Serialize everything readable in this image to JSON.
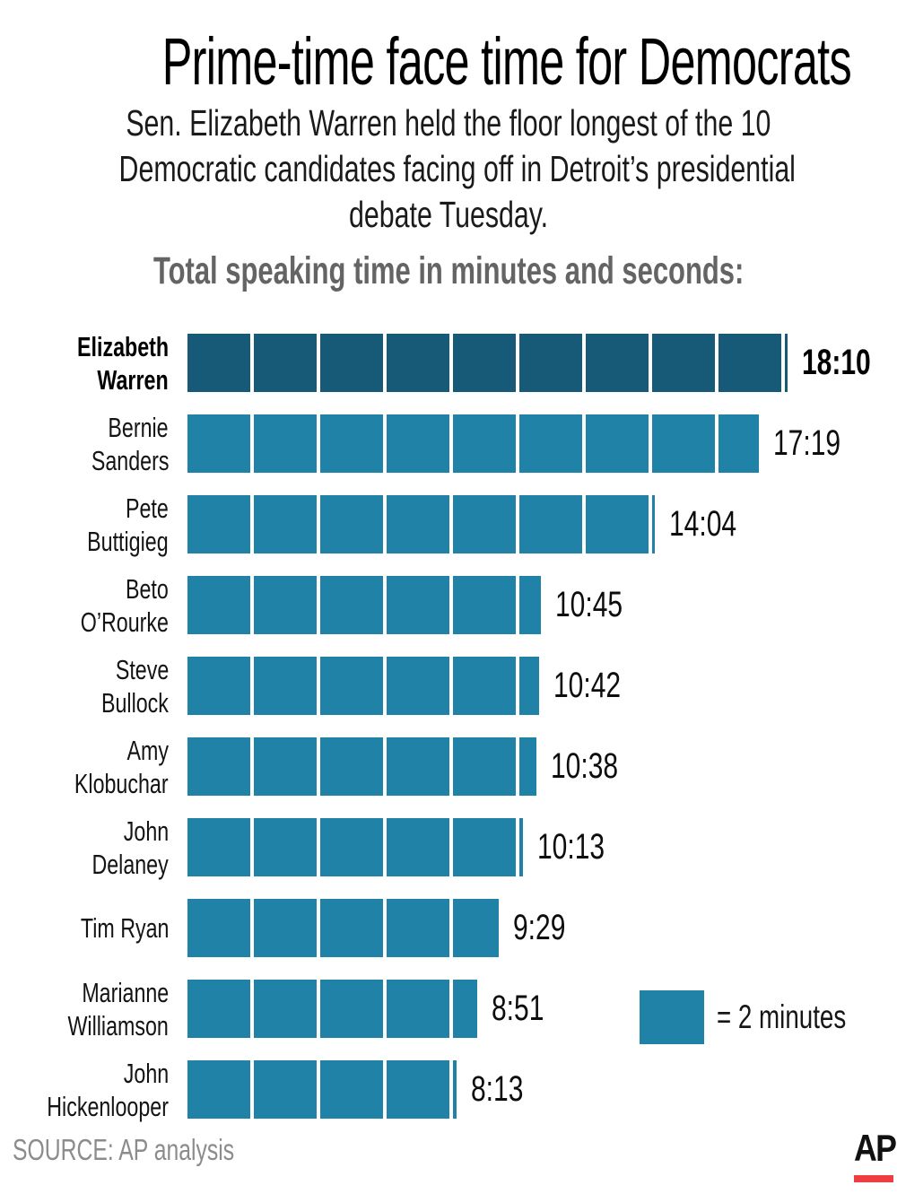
{
  "header": {
    "title": "Prime-time face time for Democrats",
    "subtitle_lines": [
      "Sen. Elizabeth Warren held the floor longest of the 10",
      "Democratic candidates facing off in Detroit’s presidential",
      "debate Tuesday."
    ],
    "section_label": "Total speaking time in minutes and seconds:"
  },
  "chart_data": {
    "type": "bar",
    "orientation": "horizontal",
    "title": "Total speaking time in minutes and seconds",
    "unit_minutes_per_segment": 2,
    "categories": [
      "Elizabeth Warren",
      "Bernie Sanders",
      "Pete Buttigieg",
      "Beto O’Rourke",
      "Steve Bullock",
      "Amy Klobuchar",
      "John Delaney",
      "Tim Ryan",
      "Marianne Williamson",
      "John Hickenlooper"
    ],
    "values": [
      "18:10",
      "17:19",
      "14:04",
      "10:45",
      "10:42",
      "10:38",
      "10:13",
      "9:29",
      "8:51",
      "8:13"
    ],
    "values_seconds": [
      1090,
      1039,
      844,
      645,
      642,
      638,
      613,
      569,
      531,
      493
    ],
    "bars": [
      {
        "lines": [
          "Elizabeth",
          "Warren"
        ],
        "value": "18:10",
        "seconds": 1090,
        "highlight": true
      },
      {
        "lines": [
          "Bernie",
          "Sanders"
        ],
        "value": "17:19",
        "seconds": 1039,
        "highlight": false
      },
      {
        "lines": [
          "Pete",
          "Buttigieg"
        ],
        "value": "14:04",
        "seconds": 844,
        "highlight": false
      },
      {
        "lines": [
          "Beto",
          "O’Rourke"
        ],
        "value": "10:45",
        "seconds": 645,
        "highlight": false
      },
      {
        "lines": [
          "Steve",
          "Bullock"
        ],
        "value": "10:42",
        "seconds": 642,
        "highlight": false
      },
      {
        "lines": [
          "Amy",
          "Klobuchar"
        ],
        "value": "10:38",
        "seconds": 638,
        "highlight": false
      },
      {
        "lines": [
          "John",
          "Delaney"
        ],
        "value": "10:13",
        "seconds": 613,
        "highlight": false
      },
      {
        "lines": [
          "Tim Ryan"
        ],
        "value": "9:29",
        "seconds": 569,
        "highlight": false
      },
      {
        "lines": [
          "Marianne",
          "Williamson"
        ],
        "value": "8:51",
        "seconds": 531,
        "highlight": false
      },
      {
        "lines": [
          "John",
          "Hickenlooper"
        ],
        "value": "8:13",
        "seconds": 493,
        "highlight": false
      }
    ],
    "colors": {
      "highlight": "#175a78",
      "normal": "#1f82a6"
    },
    "legend": {
      "label": "= 2 minutes",
      "position": "bottom-right"
    },
    "grid": false
  },
  "footer": {
    "source": "SOURCE: AP analysis",
    "logo_text": "AP",
    "logo_bar_color": "#ef3e42"
  }
}
